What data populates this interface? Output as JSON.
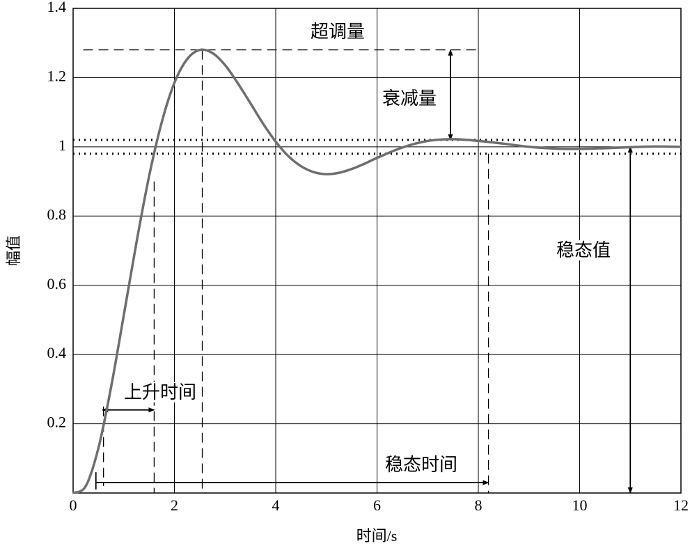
{
  "chart_data": {
    "type": "line",
    "xlabel": "时间/s",
    "ylabel": "幅值",
    "x": [
      0,
      0.25,
      0.5,
      0.75,
      1,
      1.25,
      1.5,
      1.75,
      2,
      2.25,
      2.5,
      2.75,
      3,
      3.25,
      3.5,
      3.75,
      4,
      4.25,
      4.5,
      4.75,
      5,
      5.25,
      5.5,
      5.75,
      6,
      6.5,
      7,
      7.5,
      8,
      8.5,
      9,
      9.5,
      10,
      10.5,
      11,
      11.5,
      12
    ],
    "values": [
      0,
      0.02,
      0.13,
      0.306,
      0.513,
      0.723,
      0.915,
      1.071,
      1.185,
      1.253,
      1.28,
      1.271,
      1.236,
      1.184,
      1.126,
      1.067,
      1.015,
      0.973,
      0.944,
      0.927,
      0.921,
      0.925,
      0.936,
      0.951,
      0.968,
      0.998,
      1.017,
      1.022,
      1.017,
      1.009,
      1,
      0.995,
      0.994,
      0.996,
      0.999,
      1.001,
      1
    ],
    "color": "#6e6e6e",
    "xlim": [
      0,
      12
    ],
    "xticks": [
      0,
      2,
      4,
      6,
      8,
      10,
      12
    ],
    "ylim": [
      0,
      1.4
    ],
    "yticks": [
      0.2,
      0.4,
      0.6,
      0.8,
      1,
      1.2,
      1.4
    ],
    "grid": true,
    "annotations": {
      "overshoot": "超调量",
      "decay": "衰减量",
      "steady_value": "稳态值",
      "rise_time": "上升时间",
      "settling_time": "稳态时间"
    }
  }
}
